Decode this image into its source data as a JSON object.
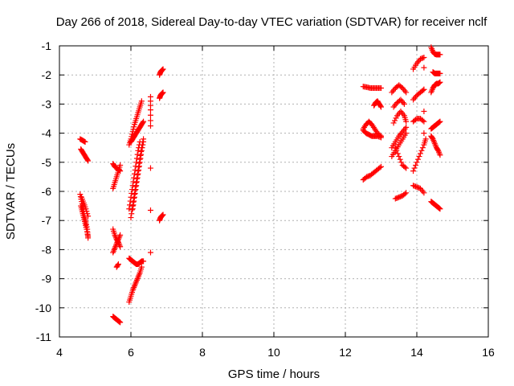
{
  "chart_data": {
    "type": "scatter",
    "title": "Day 266 of 2018, Sidereal Day-to-day VTEC variation (SDTVAR) for receiver nclf",
    "xlabel": "GPS time / hours",
    "ylabel": "SDTVAR / TECUs",
    "xlim": [
      4,
      16
    ],
    "ylim": [
      -11,
      -1
    ],
    "xticks": [
      4,
      6,
      8,
      10,
      12,
      14,
      16
    ],
    "yticks": [
      -1,
      -2,
      -3,
      -4,
      -5,
      -6,
      -7,
      -8,
      -9,
      -10,
      -11
    ],
    "xtick_labels": [
      "4",
      "6",
      "8",
      "10",
      "12",
      "14",
      "16"
    ],
    "ytick_labels": [
      "-1",
      "-2",
      "-3",
      "-4",
      "-5",
      "-6",
      "-7",
      "-8",
      "-9",
      "-10",
      "-11"
    ],
    "grid": true,
    "marker": "+",
    "marker_color": "#ff0000",
    "series": [
      {
        "name": "SDTVAR",
        "tracks": [
          {
            "x": [
              4.58,
              4.65,
              4.72
            ],
            "y": [
              -4.2,
              -4.25,
              -4.3
            ]
          },
          {
            "x": [
              4.6,
              4.65,
              4.7,
              4.75,
              4.8
            ],
            "y": [
              -4.55,
              -4.65,
              -4.75,
              -4.85,
              -4.95
            ]
          },
          {
            "x": [
              4.58,
              4.62,
              4.66,
              4.7,
              4.74,
              4.78,
              4.8
            ],
            "y": [
              -6.1,
              -6.35,
              -6.6,
              -6.85,
              -7.05,
              -7.3,
              -7.6
            ]
          },
          {
            "x": [
              4.6,
              4.64,
              4.68,
              4.72,
              4.76,
              4.8
            ],
            "y": [
              -6.5,
              -6.7,
              -6.9,
              -7.1,
              -7.3,
              -7.55
            ]
          },
          {
            "x": [
              4.62,
              4.68,
              4.74,
              4.8
            ],
            "y": [
              -6.2,
              -6.4,
              -6.6,
              -6.85
            ]
          },
          {
            "x": [
              5.5,
              5.55,
              5.6,
              5.65,
              5.7
            ],
            "y": [
              -5.05,
              -5.15,
              -5.2,
              -5.25,
              -5.3
            ]
          },
          {
            "x": [
              5.5,
              5.55,
              5.6,
              5.65,
              5.7
            ],
            "y": [
              -5.9,
              -5.7,
              -5.5,
              -5.3,
              -5.1
            ]
          },
          {
            "x": [
              5.5,
              5.55,
              5.6,
              5.65,
              5.7
            ],
            "y": [
              -7.3,
              -7.5,
              -7.65,
              -7.75,
              -7.9
            ]
          },
          {
            "x": [
              5.5,
              5.55,
              5.6,
              5.65,
              5.7
            ],
            "y": [
              -8.1,
              -7.95,
              -7.8,
              -7.65,
              -7.5
            ]
          },
          {
            "x": [
              5.6,
              5.65
            ],
            "y": [
              -8.6,
              -8.5
            ]
          },
          {
            "x": [
              5.5,
              5.55,
              5.6,
              5.65,
              5.7
            ],
            "y": [
              -10.3,
              -10.35,
              -10.4,
              -10.45,
              -10.5
            ]
          },
          {
            "x": [
              5.95,
              6.0,
              6.05,
              6.1,
              6.15,
              6.2,
              6.25,
              6.3
            ],
            "y": [
              -4.4,
              -4.2,
              -3.95,
              -3.7,
              -3.5,
              -3.3,
              -3.1,
              -2.9
            ]
          },
          {
            "x": [
              6.0,
              6.05,
              6.1,
              6.15,
              6.2,
              6.25,
              6.3,
              6.35
            ],
            "y": [
              -4.3,
              -4.2,
              -4.1,
              -4.0,
              -3.9,
              -3.8,
              -3.7,
              -3.6
            ]
          },
          {
            "x": [
              5.95,
              6.0,
              6.05,
              6.1,
              6.15,
              6.2,
              6.25
            ],
            "y": [
              -6.6,
              -6.2,
              -5.8,
              -5.4,
              -5.0,
              -4.6,
              -4.3
            ]
          },
          {
            "x": [
              6.0,
              6.05,
              6.1,
              6.15,
              6.2,
              6.25,
              6.3,
              6.35
            ],
            "y": [
              -6.9,
              -6.5,
              -6.1,
              -5.7,
              -5.3,
              -4.9,
              -4.5,
              -4.2
            ]
          },
          {
            "x": [
              6.05,
              6.1,
              6.15,
              6.2,
              6.25,
              6.3,
              6.35
            ],
            "y": [
              -6.6,
              -6.2,
              -5.8,
              -5.4,
              -5.0,
              -4.6,
              -4.3
            ]
          },
          {
            "x": [
              5.95,
              6.0,
              6.05,
              6.1,
              6.15,
              6.2,
              6.25,
              6.3,
              6.35
            ],
            "y": [
              -8.3,
              -8.35,
              -8.4,
              -8.45,
              -8.5,
              -8.5,
              -8.45,
              -8.4,
              -8.4
            ]
          },
          {
            "x": [
              5.95,
              6.0,
              6.05,
              6.1,
              6.15,
              6.2,
              6.25,
              6.3
            ],
            "y": [
              -9.8,
              -9.6,
              -9.4,
              -9.25,
              -9.1,
              -8.95,
              -8.8,
              -8.6
            ]
          },
          {
            "x": [
              6.55,
              6.55,
              6.55,
              6.55
            ],
            "y": [
              -2.75,
              -3.2,
              -3.75,
              -8.1
            ]
          },
          {
            "x": [
              6.8,
              6.83,
              6.86,
              6.9
            ],
            "y": [
              -2.0,
              -1.9,
              -1.85,
              -1.8
            ]
          },
          {
            "x": [
              6.8,
              6.83,
              6.86,
              6.9
            ],
            "y": [
              -2.8,
              -2.7,
              -2.65,
              -2.6
            ]
          },
          {
            "x": [
              6.8,
              6.83,
              6.86,
              6.9
            ],
            "y": [
              -7.0,
              -6.9,
              -6.85,
              -6.8
            ]
          },
          {
            "x": [
              12.5,
              12.6,
              12.7,
              12.8,
              12.9,
              13.0
            ],
            "y": [
              -2.4,
              -2.42,
              -2.45,
              -2.45,
              -2.45,
              -2.45
            ]
          },
          {
            "x": [
              12.8,
              12.85,
              12.9,
              12.95,
              13.0
            ],
            "y": [
              -3.05,
              -2.95,
              -2.9,
              -3.0,
              -3.1
            ]
          },
          {
            "x": [
              12.5,
              12.58,
              12.66,
              12.74,
              12.82,
              12.9,
              13.0
            ],
            "y": [
              -3.85,
              -3.7,
              -3.6,
              -3.7,
              -3.85,
              -4.0,
              -4.1
            ]
          },
          {
            "x": [
              12.5,
              12.58,
              12.66,
              12.74,
              12.82,
              12.9,
              13.0
            ],
            "y": [
              -3.9,
              -4.0,
              -4.05,
              -4.1,
              -4.1,
              -4.1,
              -4.15
            ]
          },
          {
            "x": [
              12.5,
              12.6,
              12.7,
              12.8,
              12.9,
              13.0
            ],
            "y": [
              -5.6,
              -5.5,
              -5.45,
              -5.35,
              -5.25,
              -5.15
            ]
          },
          {
            "x": [
              13.3,
              13.4,
              13.5,
              13.6,
              13.7
            ],
            "y": [
              -2.6,
              -2.45,
              -2.35,
              -2.45,
              -2.6
            ]
          },
          {
            "x": [
              13.35,
              13.45,
              13.55,
              13.65
            ],
            "y": [
              -3.1,
              -2.95,
              -2.85,
              -3.0
            ]
          },
          {
            "x": [
              13.35,
              13.45,
              13.55,
              13.65,
              13.7
            ],
            "y": [
              -3.65,
              -3.4,
              -3.25,
              -3.4,
              -3.6
            ]
          },
          {
            "x": [
              13.3,
              13.4,
              13.5,
              13.6,
              13.7
            ],
            "y": [
              -4.5,
              -4.3,
              -4.1,
              -3.95,
              -3.8
            ]
          },
          {
            "x": [
              13.3,
              13.4,
              13.5,
              13.6,
              13.7
            ],
            "y": [
              -4.8,
              -4.6,
              -4.4,
              -4.2,
              -4.0
            ]
          },
          {
            "x": [
              13.4,
              13.5,
              13.6,
              13.7
            ],
            "y": [
              -4.5,
              -4.8,
              -5.1,
              -5.2
            ]
          },
          {
            "x": [
              13.4,
              13.5,
              13.6,
              13.7
            ],
            "y": [
              -6.25,
              -6.2,
              -6.15,
              -6.05
            ]
          },
          {
            "x": [
              13.9,
              14.0,
              14.1,
              14.2
            ],
            "y": [
              -1.8,
              -1.6,
              -1.45,
              -1.4
            ]
          },
          {
            "x": [
              13.9,
              14.0,
              14.1,
              14.2
            ],
            "y": [
              -2.85,
              -2.7,
              -2.6,
              -2.5
            ]
          },
          {
            "x": [
              13.9,
              14.0,
              14.1,
              14.2
            ],
            "y": [
              -3.6,
              -3.5,
              -3.5,
              -3.6
            ]
          },
          {
            "x": [
              13.9,
              14.0,
              14.1,
              14.2,
              14.25
            ],
            "y": [
              -5.3,
              -5.0,
              -4.7,
              -4.4,
              -4.2
            ]
          },
          {
            "x": [
              13.9,
              14.0,
              14.1,
              14.2
            ],
            "y": [
              -5.8,
              -5.85,
              -5.9,
              -6.05
            ]
          },
          {
            "x": [
              14.2,
              14.2
            ],
            "y": [
              -1.75,
              -4.0
            ]
          },
          {
            "x": [
              14.4,
              14.45,
              14.5,
              14.55,
              14.6,
              14.65
            ],
            "y": [
              -1.05,
              -1.2,
              -1.28,
              -1.3,
              -1.3,
              -1.3
            ]
          },
          {
            "x": [
              14.45,
              14.5,
              14.55,
              14.6,
              14.65
            ],
            "y": [
              -1.9,
              -1.95,
              -1.95,
              -1.95,
              -1.95
            ]
          },
          {
            "x": [
              14.4,
              14.45,
              14.5,
              14.55,
              14.6,
              14.65
            ],
            "y": [
              -2.6,
              -2.45,
              -2.35,
              -2.3,
              -2.3,
              -2.25
            ]
          },
          {
            "x": [
              14.4,
              14.45,
              14.5,
              14.55,
              14.6,
              14.65
            ],
            "y": [
              -3.85,
              -3.8,
              -3.75,
              -3.7,
              -3.65,
              -3.6
            ]
          },
          {
            "x": [
              14.4,
              14.45,
              14.5,
              14.55,
              14.6,
              14.65
            ],
            "y": [
              -4.1,
              -4.2,
              -4.35,
              -4.5,
              -4.6,
              -4.75
            ]
          },
          {
            "x": [
              14.4,
              14.45,
              14.5,
              14.55,
              14.6,
              14.65
            ],
            "y": [
              -6.35,
              -6.4,
              -6.45,
              -6.5,
              -6.55,
              -6.6
            ]
          }
        ]
      }
    ]
  }
}
